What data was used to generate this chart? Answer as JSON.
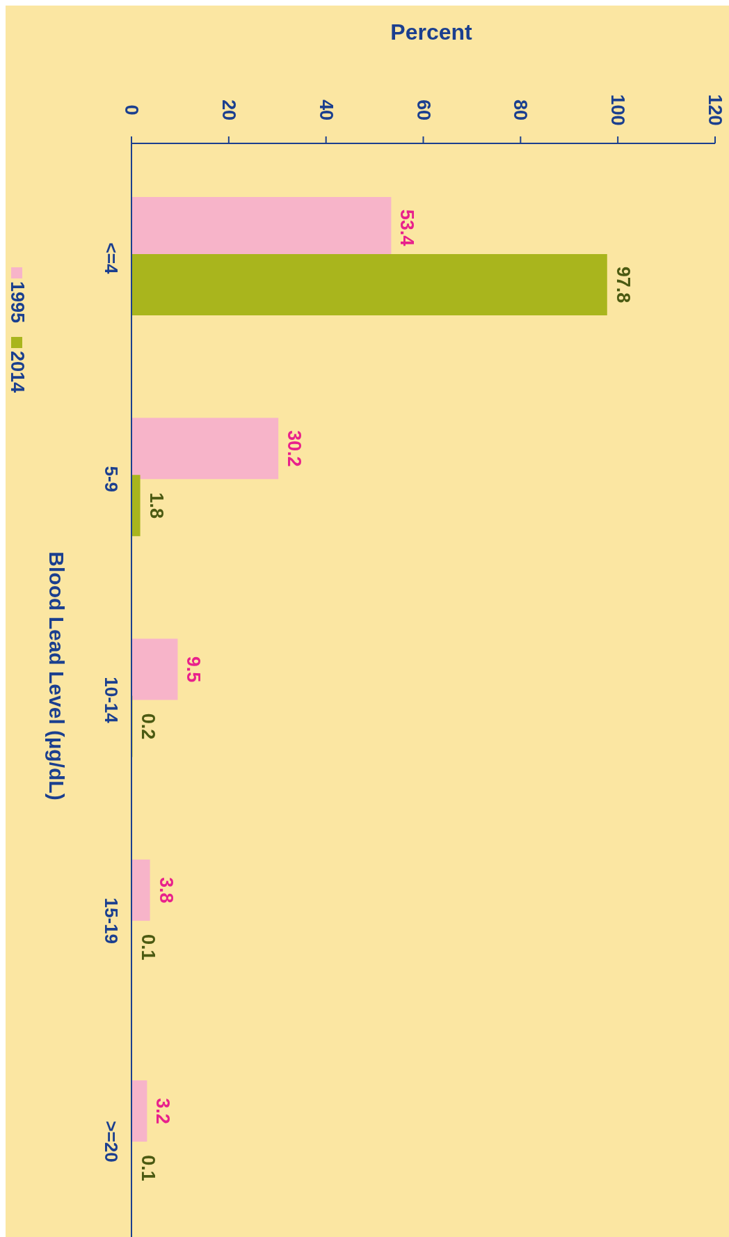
{
  "chart_data": {
    "type": "bar",
    "orientation": "horizontal",
    "xlabel": "Percent",
    "ylabel": "Blood Lead Level (µg/dL)",
    "categories": [
      "<=4",
      "5-9",
      "10-14",
      "15-19",
      ">=20"
    ],
    "series": [
      {
        "name": "1995",
        "color": "#f7b4c9",
        "values": [
          53.4,
          30.2,
          9.5,
          3.8,
          3.2
        ]
      },
      {
        "name": "2014",
        "color": "#a9b51d",
        "values": [
          97.8,
          1.8,
          0.2,
          0.1,
          0.1
        ]
      }
    ],
    "xlim": [
      0,
      120
    ],
    "xticks": [
      0,
      20,
      40,
      60,
      80,
      100,
      120
    ],
    "data_labels": true,
    "legend": "left"
  }
}
